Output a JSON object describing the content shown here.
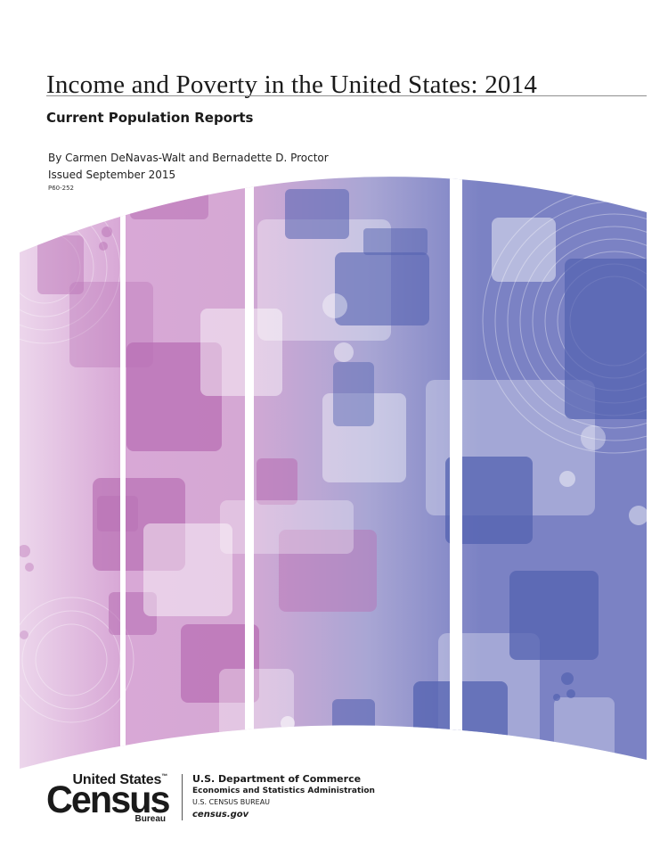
{
  "report": {
    "title": "Income and Poverty in the United States: 2014",
    "series": "Current Population Reports",
    "authors": "By Carmen DeNavas-Walt and Bernadette D. Proctor",
    "issued": "Issued September 2015",
    "report_number": "P60-252"
  },
  "footer": {
    "logo": {
      "top_text": "United States",
      "trademark": "™",
      "main_text": "Census",
      "bottom_text": "Bureau"
    },
    "department": "U.S. Department of Commerce",
    "administration": "Economics and Statistics Administration",
    "bureau": "U.S. CENSUS BUREAU",
    "website": "census.gov"
  },
  "colors": {
    "pink_dark": "#b86fb4",
    "pink_light": "#e7cce6",
    "blue_dark": "#5361b0",
    "blue_mid": "#7b82c4",
    "text": "#1a1a1a"
  }
}
